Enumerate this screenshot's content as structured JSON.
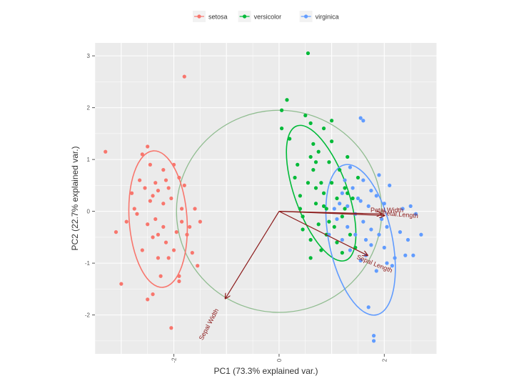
{
  "chart_data": {
    "type": "scatter",
    "xlabel": "PC1 (73.3% explained var.)",
    "ylabel": "PC2 (22.7% explained var.)",
    "xlim": [
      -3.5,
      3.0
    ],
    "ylim": [
      -2.75,
      3.25
    ],
    "x_ticks": [
      -2,
      0,
      2
    ],
    "y_ticks": [
      -2,
      -1,
      0,
      1,
      2,
      3
    ],
    "grid": true,
    "legend_position": "top",
    "colors": {
      "setosa": "#f8766d",
      "versicolor": "#00ba38",
      "virginica": "#619cff",
      "loading": "#8b1a1a",
      "circle": "#8fbc8f",
      "panel": "#ebebeb",
      "grid": "#ffffff"
    },
    "series": [
      {
        "name": "setosa",
        "points": [
          [
            -3.3,
            1.15
          ],
          [
            -3.1,
            -0.4
          ],
          [
            -3.0,
            -1.4
          ],
          [
            -2.9,
            -0.2
          ],
          [
            -2.8,
            0.35
          ],
          [
            -2.75,
            0.05
          ],
          [
            -2.7,
            -0.05
          ],
          [
            -2.65,
            0.6
          ],
          [
            -2.6,
            1.1
          ],
          [
            -2.55,
            0.45
          ],
          [
            -2.5,
            1.25
          ],
          [
            -2.5,
            -0.25
          ],
          [
            -2.45,
            0.9
          ],
          [
            -2.45,
            0.2
          ],
          [
            -2.4,
            0.3
          ],
          [
            -2.4,
            -0.5
          ],
          [
            -2.35,
            0.55
          ],
          [
            -2.35,
            -0.15
          ],
          [
            -2.3,
            0.4
          ],
          [
            -2.3,
            -0.45
          ],
          [
            -2.25,
            -1.25
          ],
          [
            -2.2,
            0.8
          ],
          [
            -2.2,
            0.15
          ],
          [
            -2.2,
            -0.3
          ],
          [
            -2.15,
            -0.6
          ],
          [
            -2.1,
            0.45
          ],
          [
            -2.1,
            -0.9
          ],
          [
            -2.05,
            0.25
          ],
          [
            -2.0,
            -0.75
          ],
          [
            -2.0,
            0.9
          ],
          [
            -1.95,
            -0.4
          ],
          [
            -1.9,
            0.65
          ],
          [
            -1.9,
            -1.35
          ],
          [
            -1.85,
            -0.2
          ],
          [
            -1.85,
            0.05
          ],
          [
            -1.8,
            0.5
          ],
          [
            -1.8,
            2.6
          ],
          [
            -1.75,
            -0.45
          ],
          [
            -1.7,
            -0.3
          ],
          [
            -1.65,
            -0.8
          ],
          [
            -1.6,
            0.05
          ],
          [
            -1.55,
            -1.05
          ],
          [
            -1.5,
            -0.2
          ],
          [
            -2.5,
            -1.7
          ],
          [
            -2.4,
            -1.6
          ],
          [
            -2.05,
            -2.25
          ],
          [
            -2.6,
            -0.75
          ],
          [
            -2.3,
            -0.9
          ],
          [
            -1.9,
            -1.25
          ],
          [
            -2.15,
            0.6
          ]
        ]
      },
      {
        "name": "versicolor",
        "points": [
          [
            0.05,
            1.95
          ],
          [
            0.05,
            1.6
          ],
          [
            0.15,
            2.15
          ],
          [
            0.2,
            1.4
          ],
          [
            0.3,
            0.65
          ],
          [
            0.35,
            0.9
          ],
          [
            0.4,
            0.3
          ],
          [
            0.4,
            0.05
          ],
          [
            0.45,
            -0.1
          ],
          [
            0.45,
            -0.35
          ],
          [
            0.5,
            1.85
          ],
          [
            0.55,
            3.05
          ],
          [
            0.55,
            0.55
          ],
          [
            0.6,
            1.7
          ],
          [
            0.6,
            1.05
          ],
          [
            0.6,
            -0.55
          ],
          [
            0.6,
            -0.9
          ],
          [
            0.65,
            0.8
          ],
          [
            0.65,
            1.3
          ],
          [
            0.7,
            0.45
          ],
          [
            0.7,
            0.15
          ],
          [
            0.75,
            1.15
          ],
          [
            0.75,
            -0.25
          ],
          [
            0.8,
            0.55
          ],
          [
            0.8,
            -0.75
          ],
          [
            0.85,
            1.6
          ],
          [
            0.85,
            0.35
          ],
          [
            0.9,
            0.05
          ],
          [
            0.9,
            -0.45
          ],
          [
            0.95,
            0.95
          ],
          [
            0.95,
            -0.2
          ],
          [
            1.0,
            1.75
          ],
          [
            1.0,
            0.55
          ],
          [
            1.05,
            -0.3
          ],
          [
            1.1,
            0.25
          ],
          [
            1.1,
            -0.6
          ],
          [
            1.15,
            0.8
          ],
          [
            1.2,
            -0.1
          ],
          [
            1.2,
            -0.8
          ],
          [
            1.25,
            0.45
          ],
          [
            1.25,
            0.05
          ],
          [
            1.3,
            1.05
          ],
          [
            1.35,
            -0.45
          ],
          [
            1.4,
            0.25
          ],
          [
            1.45,
            -0.7
          ],
          [
            1.5,
            0.65
          ],
          [
            1.0,
            1.35
          ],
          [
            0.7,
            0.95
          ],
          [
            1.3,
            0.35
          ],
          [
            0.85,
            0.1
          ]
        ]
      },
      {
        "name": "virginica",
        "points": [
          [
            0.95,
            -0.45
          ],
          [
            1.05,
            0.05
          ],
          [
            1.1,
            -0.15
          ],
          [
            1.15,
            0.15
          ],
          [
            1.2,
            -0.55
          ],
          [
            1.2,
            0.35
          ],
          [
            1.25,
            0.6
          ],
          [
            1.3,
            -0.3
          ],
          [
            1.3,
            0.1
          ],
          [
            1.35,
            -0.75
          ],
          [
            1.35,
            0.85
          ],
          [
            1.4,
            0.45
          ],
          [
            1.45,
            -0.05
          ],
          [
            1.45,
            -0.45
          ],
          [
            1.5,
            0.25
          ],
          [
            1.55,
            -0.95
          ],
          [
            1.55,
            1.8
          ],
          [
            1.6,
            1.75
          ],
          [
            1.6,
            0.6
          ],
          [
            1.6,
            -0.2
          ],
          [
            1.65,
            -0.55
          ],
          [
            1.65,
            -0.85
          ],
          [
            1.7,
            0.1
          ],
          [
            1.7,
            -1.85
          ],
          [
            1.75,
            0.4
          ],
          [
            1.75,
            -0.35
          ],
          [
            1.8,
            -2.4
          ],
          [
            1.8,
            -2.5
          ],
          [
            1.85,
            -1.15
          ],
          [
            1.85,
            0.3
          ],
          [
            1.9,
            -0.45
          ],
          [
            1.95,
            -0.15
          ],
          [
            2.0,
            0.15
          ],
          [
            2.0,
            -0.7
          ],
          [
            2.05,
            -0.3
          ],
          [
            2.1,
            0.5
          ],
          [
            2.15,
            -1.05
          ],
          [
            2.2,
            -0.9
          ],
          [
            2.3,
            -0.4
          ],
          [
            2.35,
            0.05
          ],
          [
            2.4,
            -0.85
          ],
          [
            2.45,
            -0.55
          ],
          [
            2.5,
            0.1
          ],
          [
            2.55,
            -0.85
          ],
          [
            2.6,
            -0.05
          ],
          [
            2.7,
            -0.45
          ],
          [
            1.9,
            0.7
          ],
          [
            1.55,
            0.2
          ],
          [
            2.05,
            -1.0
          ],
          [
            1.75,
            -0.65
          ]
        ]
      }
    ],
    "ellipses": [
      {
        "group": "setosa",
        "cx": -2.3,
        "cy": -0.15,
        "rx": 0.55,
        "ry": 1.32,
        "angle": -4
      },
      {
        "group": "versicolor",
        "cx": 0.8,
        "cy": 0.35,
        "rx": 0.5,
        "ry": 1.38,
        "angle": -20
      },
      {
        "group": "virginica",
        "cx": 1.55,
        "cy": -0.55,
        "rx": 0.6,
        "ry": 1.48,
        "angle": -12
      }
    ],
    "circle": {
      "cx": 0,
      "cy": 0,
      "r": 1.95
    },
    "loadings": [
      {
        "label": "Petal.Width",
        "x": 1.95,
        "y": -0.05,
        "label_x": 2.05,
        "label_y": -0.02,
        "label_angle": 0
      },
      {
        "label": "Petal.Length",
        "x": 2.0,
        "y": -0.08,
        "label_x": 2.3,
        "label_y": -0.1,
        "label_angle": 5
      },
      {
        "label": "Sepal Length",
        "x": 1.68,
        "y": -0.85,
        "label_x": 1.8,
        "label_y": -1.05,
        "label_angle": 22
      },
      {
        "label": "Sepal Width",
        "x": -1.02,
        "y": -1.68,
        "label_x": -1.3,
        "label_y": -2.2,
        "label_angle": -62
      }
    ],
    "legend_entries": [
      "setosa",
      "versicolor",
      "virginica"
    ]
  }
}
